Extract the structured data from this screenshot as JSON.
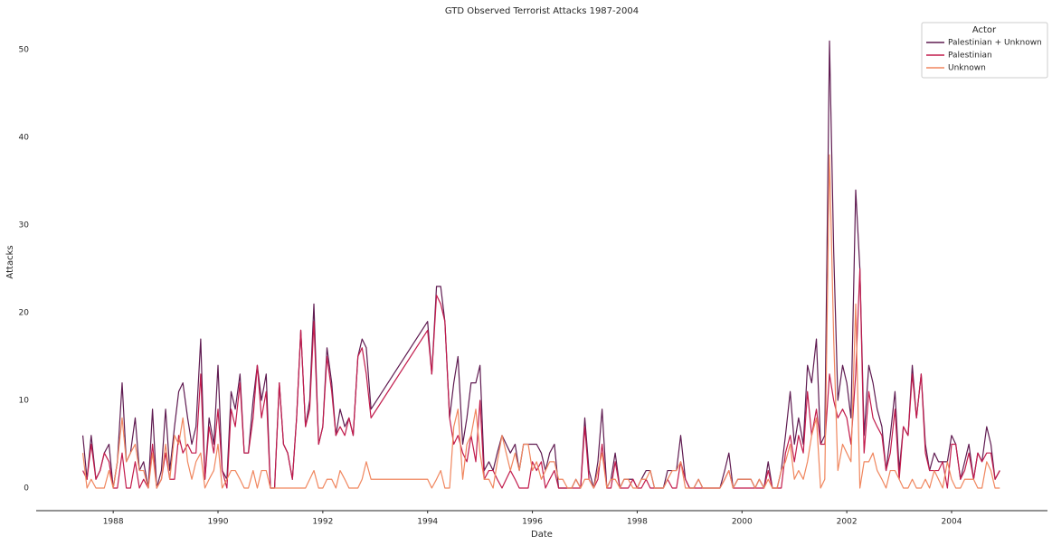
{
  "chart_data": {
    "type": "line",
    "title": "GTD Observed Terrorist Attacks 1987-2004",
    "xlabel": "Date",
    "ylabel": "Attacks",
    "legend_title": "Actor",
    "legend": "upper right",
    "grid": false,
    "x": [
      1987.42,
      1987.5,
      1987.58,
      1987.67,
      1987.75,
      1987.83,
      1987.92,
      1988.0,
      1988.08,
      1988.17,
      1988.25,
      1988.33,
      1988.42,
      1988.5,
      1988.58,
      1988.67,
      1988.75,
      1988.83,
      1988.92,
      1989.0,
      1989.08,
      1989.17,
      1989.25,
      1989.33,
      1989.42,
      1989.5,
      1989.58,
      1989.67,
      1989.75,
      1989.83,
      1989.92,
      1990.0,
      1990.08,
      1990.17,
      1990.25,
      1990.33,
      1990.42,
      1990.5,
      1990.58,
      1990.67,
      1990.75,
      1990.83,
      1990.92,
      1991.0,
      1991.08,
      1991.17,
      1991.25,
      1991.33,
      1991.42,
      1991.5,
      1991.58,
      1991.67,
      1991.75,
      1991.83,
      1991.92,
      1992.0,
      1992.08,
      1992.17,
      1992.25,
      1992.33,
      1992.42,
      1992.5,
      1992.58,
      1992.67,
      1992.75,
      1992.83,
      1992.92,
      1994.0,
      1994.08,
      1994.17,
      1994.25,
      1994.33,
      1994.42,
      1994.5,
      1994.58,
      1994.67,
      1994.75,
      1994.83,
      1994.92,
      1995.0,
      1995.08,
      1995.17,
      1995.25,
      1995.33,
      1995.42,
      1995.5,
      1995.58,
      1995.67,
      1995.75,
      1995.83,
      1995.92,
      1996.0,
      1996.08,
      1996.17,
      1996.25,
      1996.33,
      1996.42,
      1996.5,
      1996.58,
      1996.67,
      1996.75,
      1996.83,
      1996.92,
      1997.0,
      1997.08,
      1997.17,
      1997.25,
      1997.33,
      1997.42,
      1997.5,
      1997.58,
      1997.67,
      1997.75,
      1997.83,
      1997.92,
      1998.0,
      1998.08,
      1998.17,
      1998.25,
      1998.33,
      1998.42,
      1998.5,
      1998.58,
      1998.67,
      1998.75,
      1998.83,
      1998.92,
      1999.0,
      1999.08,
      1999.17,
      1999.25,
      1999.33,
      1999.42,
      1999.5,
      1999.58,
      1999.67,
      1999.75,
      1999.83,
      1999.92,
      2000.0,
      2000.08,
      2000.17,
      2000.25,
      2000.33,
      2000.42,
      2000.5,
      2000.58,
      2000.67,
      2000.75,
      2000.83,
      2000.92,
      2001.0,
      2001.08,
      2001.17,
      2001.25,
      2001.33,
      2001.42,
      2001.5,
      2001.58,
      2001.67,
      2001.75,
      2001.83,
      2001.92,
      2002.0,
      2002.08,
      2002.17,
      2002.25,
      2002.33,
      2002.42,
      2002.5,
      2002.58,
      2002.67,
      2002.75,
      2002.83,
      2002.92,
      2003.0,
      2003.08,
      2003.17,
      2003.25,
      2003.33,
      2003.42,
      2003.5,
      2003.58,
      2003.67,
      2003.75,
      2003.83,
      2003.92,
      2004.0,
      2004.08,
      2004.17,
      2004.25,
      2004.33,
      2004.42,
      2004.5,
      2004.58,
      2004.67,
      2004.75,
      2004.83,
      2004.92
    ],
    "series": [
      {
        "name": "Palestinian + Unknown",
        "color": "#5f1b51",
        "values": [
          6,
          1,
          6,
          1,
          2,
          4,
          5,
          0,
          3,
          12,
          3,
          4,
          8,
          2,
          3,
          0,
          9,
          0,
          2,
          9,
          2,
          7,
          11,
          12,
          8,
          5,
          7,
          17,
          1,
          8,
          5,
          14,
          2,
          1,
          11,
          9,
          13,
          4,
          4,
          10,
          14,
          10,
          13,
          0,
          0,
          12,
          5,
          4,
          1,
          8,
          18,
          7,
          10,
          21,
          5,
          7,
          16,
          12,
          6,
          9,
          7,
          8,
          6,
          15,
          17,
          16,
          9,
          19,
          13,
          23,
          23,
          19,
          8,
          12,
          15,
          5,
          8,
          12,
          12,
          14,
          2,
          3,
          2,
          4,
          6,
          5,
          4,
          5,
          2,
          5,
          5,
          5,
          5,
          4,
          2,
          4,
          5,
          0,
          0,
          0,
          0,
          1,
          0,
          8,
          2,
          0,
          3,
          9,
          0,
          1,
          4,
          0,
          1,
          1,
          1,
          0,
          1,
          2,
          2,
          0,
          0,
          0,
          2,
          2,
          2,
          6,
          1,
          0,
          0,
          1,
          0,
          0,
          0,
          0,
          0,
          2,
          4,
          0,
          1,
          1,
          1,
          1,
          0,
          1,
          0,
          3,
          0,
          0,
          2,
          6,
          11,
          5,
          8,
          5,
          14,
          12,
          17,
          5,
          6,
          51,
          27,
          10,
          14,
          12,
          8,
          34,
          25,
          6,
          14,
          12,
          9,
          7,
          2,
          6,
          11,
          2,
          7,
          6,
          14,
          8,
          13,
          5,
          2,
          4,
          3,
          3,
          3,
          6,
          5,
          1,
          3,
          5,
          1,
          4,
          3,
          7,
          5,
          1,
          2
        ]
      },
      {
        "name": "Palestinian",
        "color": "#c21b4c",
        "values": [
          2,
          1,
          5,
          1,
          2,
          4,
          3,
          0,
          0,
          4,
          0,
          0,
          3,
          0,
          1,
          0,
          5,
          0,
          1,
          4,
          1,
          1,
          6,
          4,
          5,
          4,
          4,
          13,
          1,
          7,
          4,
          9,
          2,
          0,
          9,
          7,
          12,
          4,
          4,
          8,
          14,
          8,
          11,
          0,
          0,
          12,
          5,
          4,
          1,
          8,
          18,
          7,
          9,
          19,
          5,
          7,
          15,
          11,
          6,
          7,
          6,
          8,
          6,
          15,
          16,
          13,
          8,
          18,
          13,
          22,
          21,
          19,
          8,
          5,
          6,
          4,
          3,
          6,
          3,
          10,
          1,
          2,
          2,
          1,
          0,
          1,
          2,
          1,
          0,
          0,
          0,
          3,
          2,
          3,
          0,
          1,
          2,
          0,
          0,
          0,
          0,
          0,
          0,
          7,
          1,
          0,
          1,
          5,
          0,
          0,
          3,
          0,
          0,
          0,
          1,
          0,
          0,
          1,
          0,
          0,
          0,
          0,
          1,
          0,
          0,
          3,
          1,
          0,
          0,
          0,
          0,
          0,
          0,
          0,
          0,
          1,
          2,
          0,
          0,
          0,
          0,
          0,
          0,
          0,
          0,
          2,
          0,
          0,
          0,
          4,
          6,
          3,
          6,
          4,
          11,
          6,
          9,
          5,
          5,
          13,
          10,
          8,
          9,
          8,
          5,
          13,
          25,
          4,
          11,
          8,
          7,
          6,
          2,
          4,
          9,
          1,
          7,
          6,
          13,
          8,
          13,
          4,
          2,
          2,
          2,
          3,
          0,
          5,
          5,
          1,
          2,
          4,
          1,
          4,
          3,
          4,
          4,
          1,
          2
        ]
      },
      {
        "name": "Unknown",
        "color": "#f0865e",
        "values": [
          4,
          0,
          1,
          0,
          0,
          0,
          2,
          0,
          3,
          8,
          3,
          4,
          5,
          2,
          2,
          0,
          4,
          0,
          1,
          5,
          1,
          6,
          5,
          8,
          3,
          1,
          3,
          4,
          0,
          1,
          2,
          5,
          0,
          1,
          2,
          2,
          1,
          0,
          0,
          2,
          0,
          2,
          2,
          0,
          0,
          0,
          0,
          0,
          0,
          0,
          0,
          0,
          1,
          2,
          0,
          0,
          1,
          1,
          0,
          2,
          1,
          0,
          0,
          0,
          1,
          3,
          1,
          1,
          0,
          1,
          2,
          0,
          0,
          7,
          9,
          1,
          5,
          6,
          9,
          4,
          1,
          1,
          0,
          3,
          6,
          4,
          2,
          4,
          2,
          5,
          5,
          2,
          3,
          1,
          2,
          3,
          3,
          1,
          1,
          0,
          0,
          1,
          0,
          1,
          1,
          0,
          2,
          4,
          0,
          1,
          1,
          0,
          1,
          1,
          0,
          0,
          1,
          1,
          2,
          0,
          0,
          0,
          1,
          2,
          2,
          3,
          0,
          0,
          0,
          1,
          0,
          0,
          0,
          0,
          0,
          1,
          2,
          0,
          1,
          1,
          1,
          1,
          0,
          1,
          0,
          1,
          0,
          0,
          2,
          3,
          5,
          1,
          2,
          1,
          3,
          6,
          8,
          0,
          1,
          38,
          17,
          2,
          5,
          4,
          3,
          21,
          0,
          3,
          3,
          4,
          2,
          1,
          0,
          2,
          2,
          1,
          0,
          0,
          1,
          0,
          0,
          1,
          0,
          2,
          1,
          0,
          3,
          1,
          0,
          0,
          1,
          1,
          1,
          0,
          0,
          3,
          2,
          0,
          0
        ]
      }
    ],
    "xlim": [
      1986.53,
      2005.83
    ],
    "xticks": [
      1988,
      1990,
      1992,
      1994,
      1996,
      1998,
      2000,
      2002,
      2004
    ],
    "ylim": [
      -2.58,
      54.6
    ],
    "yticks": [
      0,
      10,
      20,
      30,
      40,
      50
    ]
  }
}
